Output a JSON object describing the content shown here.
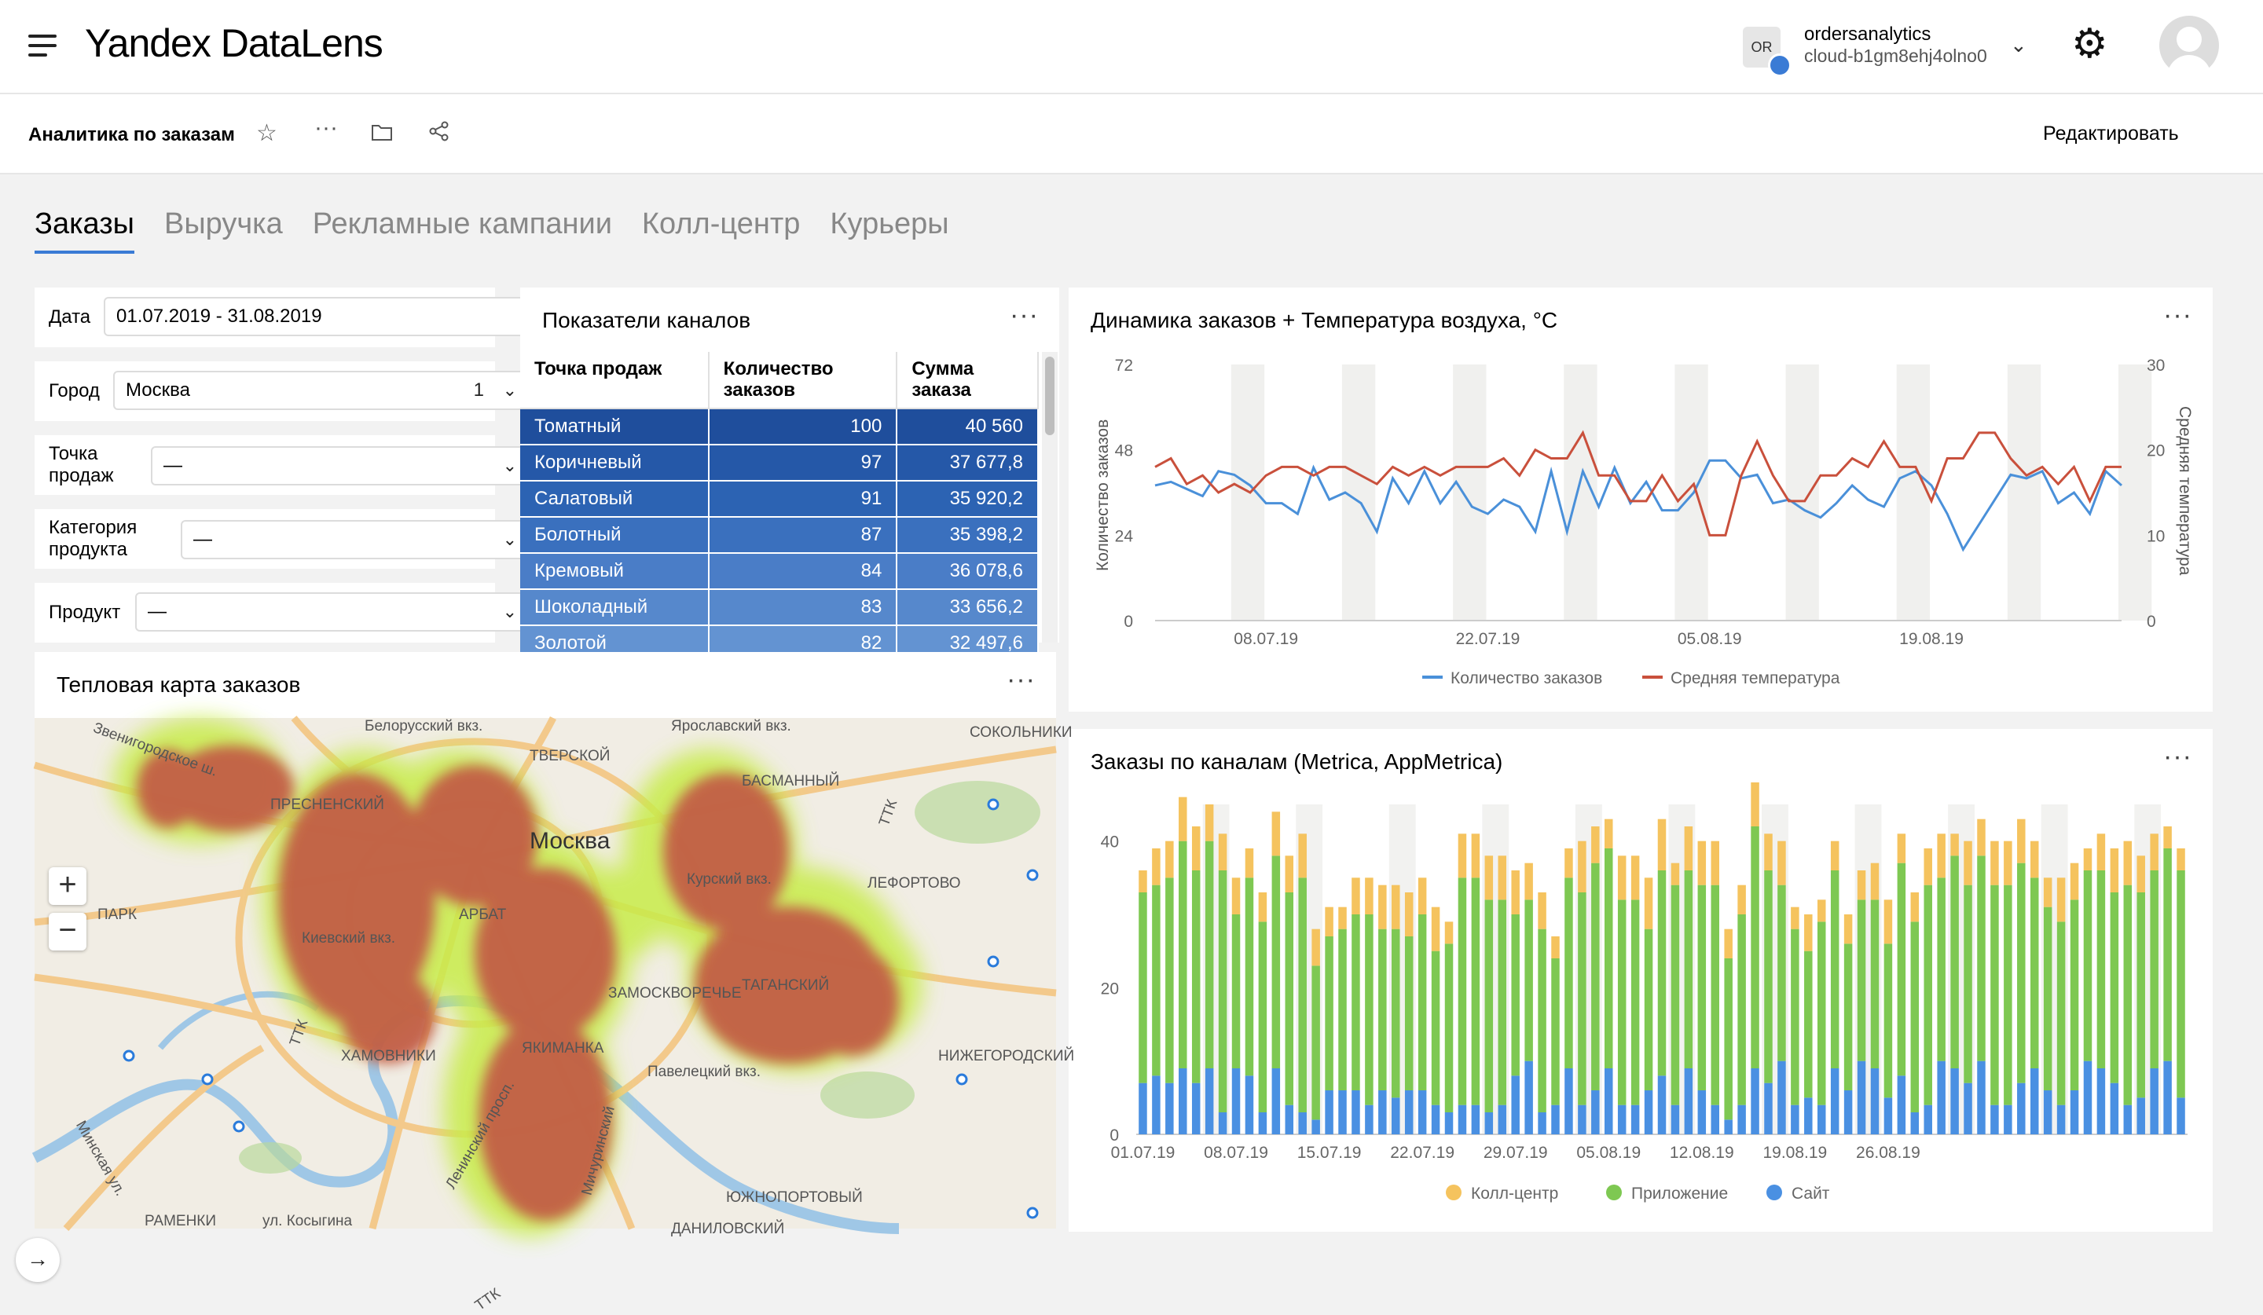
{
  "header": {
    "logo": "Yandex DataLens",
    "account_badge": "OR",
    "account_name": "ordersanalytics",
    "cloud_id": "cloud-b1gm8ehj4olno0"
  },
  "subheader": {
    "title": "Аналитика по заказам",
    "edit_label": "Редактировать"
  },
  "tabs": [
    "Заказы",
    "Выручка",
    "Рекламные кампании",
    "Колл-центр",
    "Курьеры"
  ],
  "filters": {
    "date_label": "Дата",
    "date_value": "01.07.2019 - 31.08.2019",
    "city_label": "Город",
    "city_value": "Москва",
    "city_count": "1",
    "point_label_1": "Точка",
    "point_label_2": "продаж",
    "point_value": "—",
    "category_label_1": "Категория",
    "category_label_2": "продукта",
    "category_value": "—",
    "product_label": "Продукт",
    "product_value": "—"
  },
  "channel_table": {
    "title": "Показатели каналов",
    "headers": [
      [
        "Точка продаж"
      ],
      [
        "Количество",
        "заказов"
      ],
      [
        "Сумма",
        "заказа"
      ]
    ],
    "rows": [
      [
        "Томатный",
        "100",
        "40 560"
      ],
      [
        "Коричневый",
        "97",
        "37 677,8"
      ],
      [
        "Салатовый",
        "91",
        "35 920,2"
      ],
      [
        "Болотный",
        "87",
        "35 398,2"
      ],
      [
        "Кремовый",
        "84",
        "36 078,6"
      ],
      [
        "Шоколадный",
        "83",
        "33 656,2"
      ],
      [
        "Золотой",
        "82",
        "32 497,6"
      ]
    ]
  },
  "map": {
    "title": "Тепловая карта заказов",
    "city_label": "Москва",
    "zoom_in": "+",
    "zoom_out": "−",
    "labels": [
      "Белорусский вкз.",
      "Ярославский вкз.",
      "Звенигородское ш.",
      "ТВЕРСКОЙ",
      "СОКОЛЬНИКИ",
      "ПРЕСНЕНСКИЙ",
      "БАСМАННЫЙ",
      "ТТК",
      "Курский вкз.",
      "ЛЕФОРТОВО",
      "ПАРК",
      "АРБАТ",
      "Киевский вкз.",
      "ЗАМОСКВОРЕЧЬЕ",
      "ТАГАНСКИЙ",
      "ХАМОВНИКИ",
      "ЯКИМАНКА",
      "Павелецкий вкз.",
      "НИЖЕГОРОДСКИЙ",
      "Минская ул.",
      "Ленинский просп.",
      "ЮЖНОПОРТОВЫЙ",
      "Мичуринский",
      "РАМЕНКИ",
      "ул. Косыгина",
      "ДАНИЛОВСКИЙ",
      "ТТК",
      "ТТК"
    ]
  },
  "chart_data": [
    {
      "type": "line",
      "title": "Динамика заказов + Температура воздуха, °C",
      "ylabel": "Количество заказов",
      "y2label": "Средняя температура",
      "ylim": [
        0,
        72
      ],
      "y2lim": [
        0,
        30
      ],
      "yticks": [
        "72",
        "48",
        "24",
        "0"
      ],
      "y2ticks": [
        "30",
        "20",
        "10",
        "0"
      ],
      "xticks": [
        "08.07.19",
        "22.07.19",
        "05.08.19",
        "19.08.19"
      ],
      "x": [
        "01.07",
        "02.07",
        "03.07",
        "04.07",
        "05.07",
        "06.07",
        "07.07",
        "08.07",
        "09.07",
        "10.07",
        "11.07",
        "12.07",
        "13.07",
        "14.07",
        "15.07",
        "16.07",
        "17.07",
        "18.07",
        "19.07",
        "20.07",
        "21.07",
        "22.07",
        "23.07",
        "24.07",
        "25.07",
        "26.07",
        "27.07",
        "28.07",
        "29.07",
        "30.07",
        "31.07",
        "01.08",
        "02.08",
        "03.08",
        "04.08",
        "05.08",
        "06.08",
        "07.08",
        "08.08",
        "09.08",
        "10.08",
        "11.08",
        "12.08",
        "13.08",
        "14.08",
        "15.08",
        "16.08",
        "17.08",
        "18.08",
        "19.08",
        "20.08",
        "21.08",
        "22.08",
        "23.08",
        "24.08",
        "25.08",
        "26.08",
        "27.08",
        "28.08",
        "29.08",
        "30.08",
        "31.08"
      ],
      "series": [
        {
          "name": "Количество заказов",
          "color": "#4a90d9",
          "axis": "left",
          "values": [
            38,
            39,
            37,
            35,
            42,
            41,
            38,
            33,
            33,
            30,
            43,
            34,
            36,
            33,
            25,
            40,
            33,
            42,
            33,
            39,
            32,
            30,
            34,
            32,
            25,
            42,
            25,
            42,
            32,
            43,
            33,
            39,
            31,
            31,
            36,
            45,
            45,
            40,
            41,
            33,
            34,
            31,
            29,
            33,
            38,
            34,
            32,
            40,
            42,
            38,
            30,
            20,
            27,
            34,
            41,
            40,
            42,
            33,
            36,
            30,
            42,
            38
          ]
        },
        {
          "name": "Средняя температура",
          "color": "#c9503c",
          "axis": "right",
          "values": [
            18,
            19,
            16,
            17,
            15,
            16,
            15,
            17,
            18,
            18,
            17,
            18,
            18,
            17,
            16,
            18,
            17,
            18,
            17,
            18,
            18,
            18,
            19,
            17,
            20,
            19,
            19,
            22,
            17,
            17,
            14,
            14,
            17,
            14,
            16,
            10,
            10,
            17,
            21,
            17,
            14,
            14,
            17,
            17,
            19,
            18,
            21,
            18,
            18,
            14,
            19,
            19,
            22,
            22,
            19,
            17,
            18,
            16,
            18,
            14,
            18,
            18
          ]
        }
      ],
      "legend": "bottom"
    },
    {
      "type": "bar",
      "stacked": true,
      "title": "Заказы по каналам (Metrica, AppMetrica)",
      "ylim": [
        0,
        45
      ],
      "yticks": [
        "40",
        "20",
        "0"
      ],
      "xticks": [
        "01.07.19",
        "08.07.19",
        "15.07.19",
        "22.07.19",
        "29.07.19",
        "05.08.19",
        "12.08.19",
        "19.08.19",
        "26.08.19"
      ],
      "series": [
        {
          "name": "Сайт",
          "color": "#4a90e2",
          "values": [
            7,
            8,
            7,
            9,
            7,
            9,
            3,
            9,
            8,
            3,
            9,
            4,
            3,
            2,
            6,
            6,
            6,
            4,
            6,
            5,
            6,
            6,
            4,
            3,
            4,
            4,
            3,
            4,
            8,
            10,
            3,
            4,
            9,
            4,
            6,
            9,
            4,
            4,
            6,
            8,
            4,
            9,
            6,
            4,
            2,
            4,
            9,
            7,
            10,
            4,
            5,
            4,
            9,
            6,
            10,
            9,
            5,
            8,
            3,
            4,
            10,
            9,
            7,
            10,
            4,
            4,
            7,
            9,
            6,
            4,
            6,
            10,
            9,
            7,
            4,
            5,
            9,
            10,
            5
          ]
        },
        {
          "name": "Приложение",
          "color": "#7ec852",
          "values": [
            26,
            26,
            28,
            31,
            29,
            31,
            33,
            21,
            27,
            26,
            29,
            29,
            32,
            21,
            21,
            22,
            24,
            26,
            22,
            23,
            21,
            24,
            21,
            23,
            31,
            31,
            29,
            28,
            22,
            22,
            25,
            20,
            26,
            29,
            31,
            30,
            28,
            28,
            22,
            28,
            30,
            27,
            28,
            30,
            22,
            26,
            33,
            29,
            24,
            24,
            20,
            25,
            27,
            20,
            22,
            23,
            21,
            29,
            26,
            30,
            25,
            29,
            27,
            28,
            30,
            30,
            30,
            26,
            25,
            25,
            26,
            26,
            27,
            26,
            30,
            28,
            27,
            29,
            31
          ]
        },
        {
          "name": "Колл-центр",
          "color": "#f5c35e",
          "values": [
            3,
            5,
            5,
            6,
            6,
            5,
            5,
            5,
            4,
            4,
            6,
            5,
            6,
            5,
            4,
            3,
            5,
            5,
            6,
            6,
            6,
            5,
            6,
            3,
            6,
            6,
            6,
            6,
            6,
            5,
            5,
            3,
            4,
            7,
            5,
            4,
            6,
            6,
            7,
            7,
            3,
            6,
            6,
            6,
            4,
            4,
            6,
            5,
            6,
            3,
            5,
            3,
            4,
            4,
            4,
            5,
            6,
            4,
            4,
            5,
            6,
            3,
            6,
            5,
            6,
            6,
            6,
            5,
            4,
            6,
            5,
            3,
            5,
            6,
            6,
            5,
            5,
            3,
            3
          ]
        }
      ],
      "legend": "bottom"
    }
  ]
}
